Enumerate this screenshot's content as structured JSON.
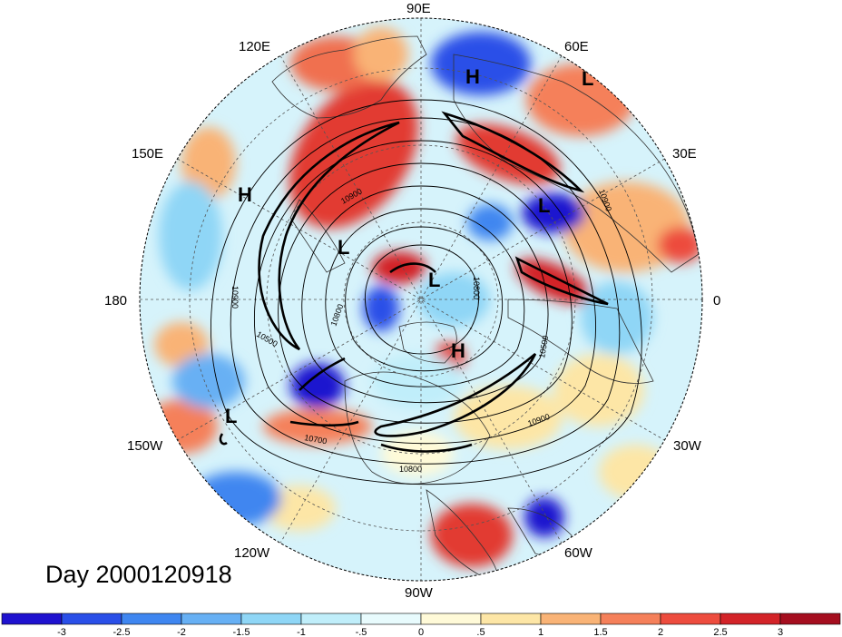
{
  "title": "Day 2000120918",
  "colors": {
    "land_outline": "#333333",
    "contour": "#000000"
  },
  "longitude_labels": [
    {
      "text": "90E"
    },
    {
      "text": "60E"
    },
    {
      "text": "30E"
    },
    {
      "text": "0"
    },
    {
      "text": "30W"
    },
    {
      "text": "60W"
    },
    {
      "text": "90W"
    },
    {
      "text": "120W"
    },
    {
      "text": "150W"
    },
    {
      "text": "180"
    },
    {
      "text": "150E"
    },
    {
      "text": "120E"
    }
  ],
  "pressure_centers": [
    "H",
    "L",
    "L",
    "H",
    "L",
    "L",
    "H",
    "L"
  ],
  "contour_labels": [
    "10900",
    "10900",
    "10500",
    "10800",
    "10900",
    "10800",
    "10700",
    "10500",
    "10900",
    "10800"
  ],
  "colorbar": {
    "colors": [
      "#1f12cf",
      "#2a4fe8",
      "#3f86f0",
      "#67b0f4",
      "#8fd6f6",
      "#c0eefa",
      "#e8fbfd",
      "#fffad8",
      "#fde6a6",
      "#f9b376",
      "#f5805a",
      "#ed4c3e",
      "#d32328",
      "#a50e1f"
    ],
    "labels": [
      "-3",
      "-2.5",
      "-2",
      "-1.5",
      "-1",
      "-.5",
      "0",
      ".5",
      "1",
      "1.5",
      "2",
      "2.5",
      "3"
    ]
  }
}
